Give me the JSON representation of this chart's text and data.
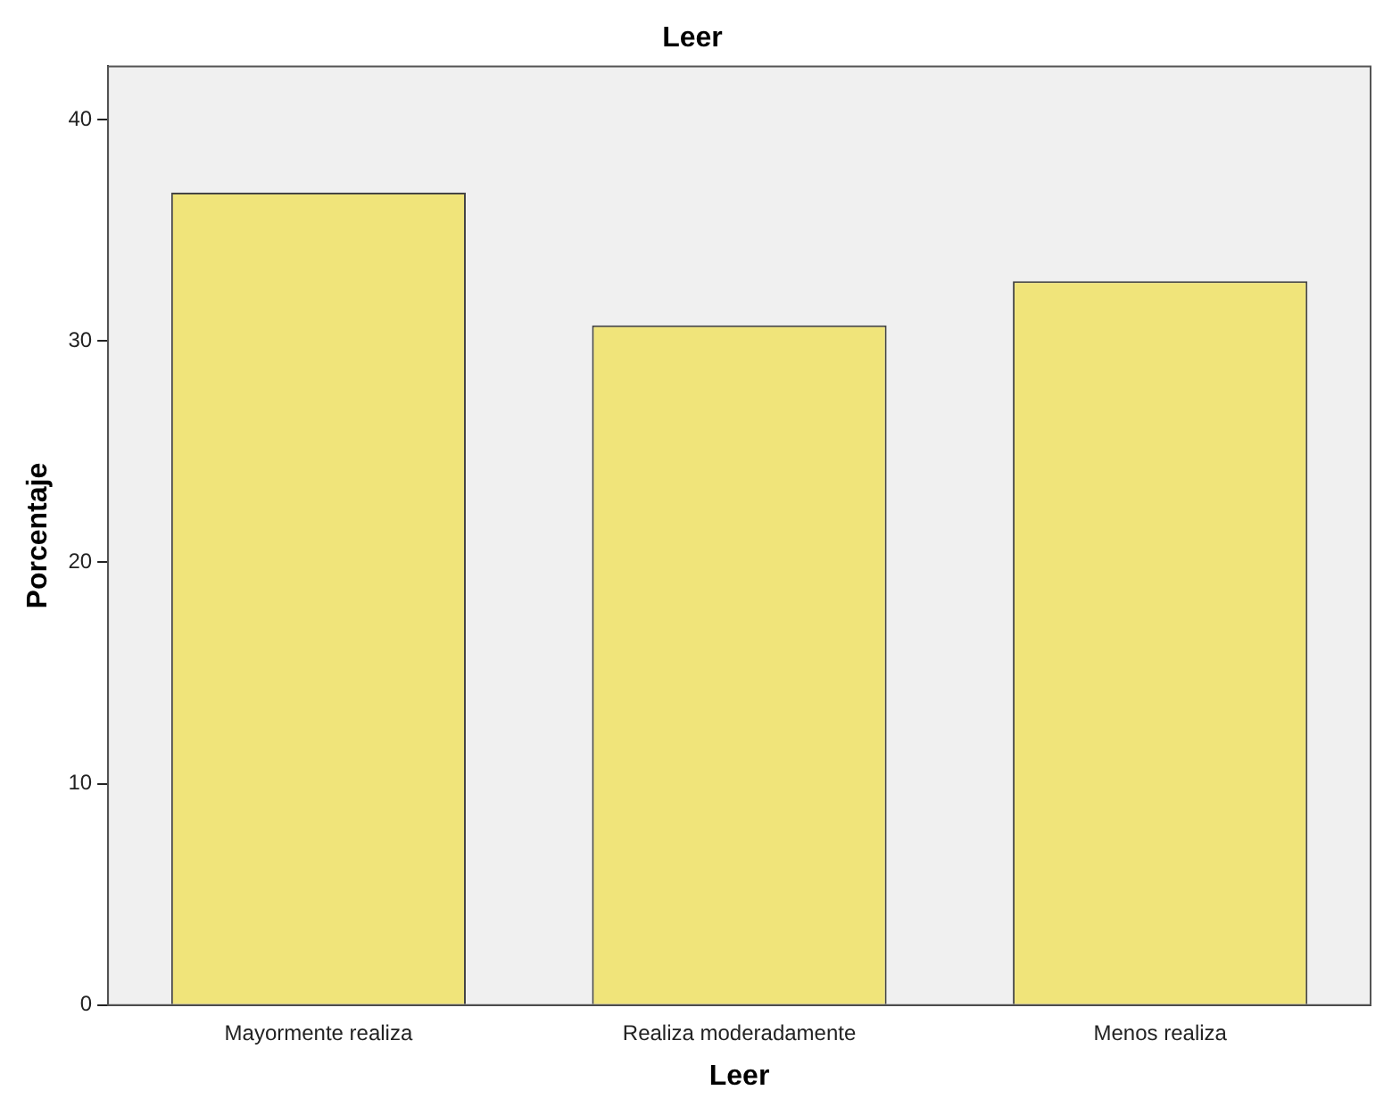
{
  "chart_data": {
    "type": "bar",
    "title": "Leer",
    "xlabel": "Leer",
    "ylabel": "Porcentaje",
    "categories": [
      "Mayormente realiza",
      "Realiza moderadamente",
      "Menos realiza"
    ],
    "values": [
      36.7,
      30.7,
      32.7
    ],
    "color": "#f0e47a",
    "ylim": [
      0,
      42.4
    ],
    "yticks": [
      0,
      10,
      20,
      30,
      40
    ],
    "grid": false,
    "legend": false
  }
}
